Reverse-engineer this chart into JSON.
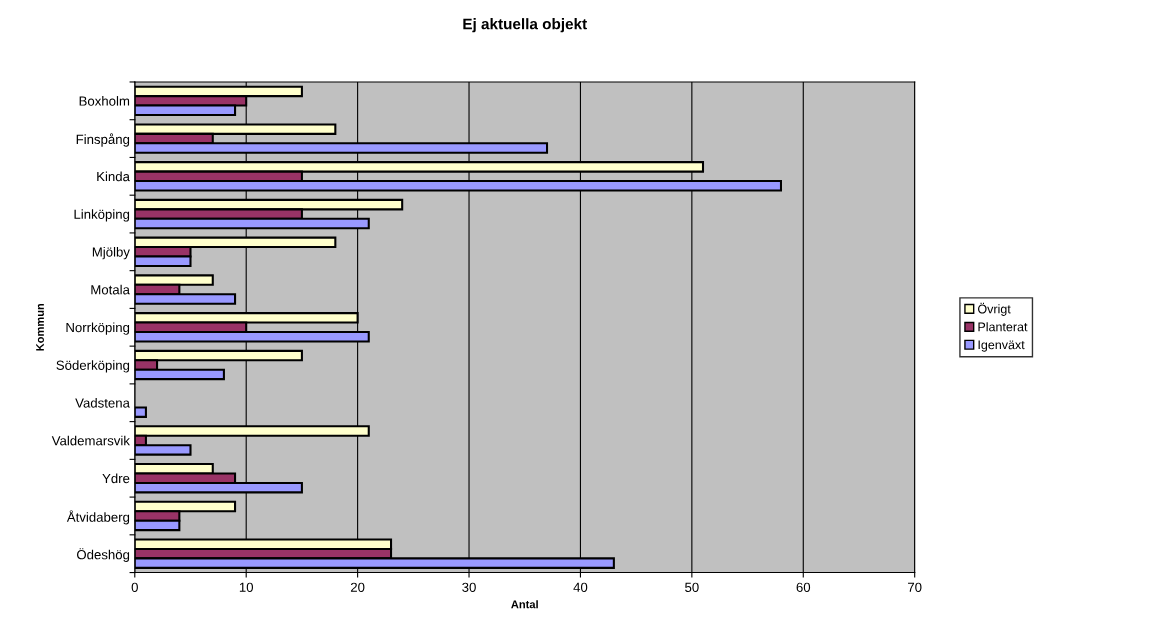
{
  "chart_data": {
    "type": "bar",
    "orientation": "horizontal",
    "title": "Ej aktuella objekt",
    "xlabel": "Antal",
    "ylabel": "Kommun",
    "categories": [
      "Boxholm",
      "Finspång",
      "Kinda",
      "Linköping",
      "Mjölby",
      "Motala",
      "Norrköping",
      "Söderköping",
      "Vadstena",
      "Valdemarsvik",
      "Ydre",
      "Åtvidaberg",
      "Ödeshög"
    ],
    "series": [
      {
        "name": "Övrigt",
        "color": "#ffffcc",
        "values": [
          15,
          18,
          51,
          24,
          18,
          7,
          20,
          15,
          null,
          21,
          7,
          9,
          23
        ]
      },
      {
        "name": "Planterat",
        "color": "#993366",
        "values": [
          10,
          7,
          15,
          15,
          5,
          4,
          10,
          2,
          null,
          1,
          9,
          4,
          23
        ]
      },
      {
        "name": "Igenväxt",
        "color": "#9999ff",
        "values": [
          9,
          37,
          58,
          21,
          5,
          9,
          21,
          8,
          1,
          5,
          15,
          4,
          43
        ]
      }
    ],
    "xlim": [
      0,
      70
    ],
    "xticks": [
      0,
      10,
      20,
      30,
      40,
      50,
      60,
      70
    ],
    "grid": "x",
    "legend": "right"
  }
}
